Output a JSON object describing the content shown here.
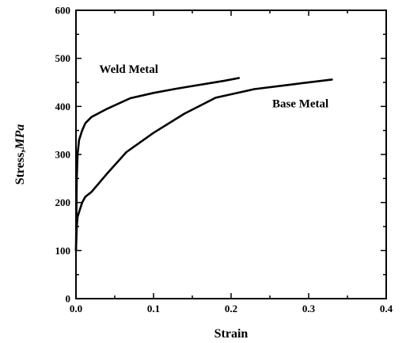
{
  "chart_data": {
    "type": "line",
    "title": "",
    "xlabel": "Strain",
    "ylabel_prefix": "Stress,",
    "ylabel_unit": "MPa",
    "xlim": [
      0,
      0.4
    ],
    "ylim": [
      0,
      600
    ],
    "x_ticks": [
      0.0,
      0.1,
      0.2,
      0.3,
      0.4
    ],
    "x_tick_labels": [
      "0.0",
      "0.1",
      "0.2",
      "0.3",
      "0.4"
    ],
    "y_ticks": [
      0,
      100,
      200,
      300,
      400,
      500,
      600
    ],
    "y_tick_labels": [
      "0",
      "100",
      "200",
      "300",
      "400",
      "500",
      "600"
    ],
    "grid": false,
    "series": [
      {
        "name": "Weld Metal",
        "x": [
          0.0,
          0.001,
          0.002,
          0.004,
          0.008,
          0.012,
          0.02,
          0.04,
          0.07,
          0.1,
          0.13,
          0.16,
          0.19,
          0.21
        ],
        "y": [
          100,
          250,
          300,
          330,
          350,
          365,
          378,
          395,
          417,
          428,
          437,
          445,
          453,
          459
        ]
      },
      {
        "name": "Base Metal",
        "x": [
          0.0,
          0.001,
          0.002,
          0.004,
          0.008,
          0.012,
          0.02,
          0.04,
          0.065,
          0.1,
          0.14,
          0.18,
          0.23,
          0.28,
          0.33
        ],
        "y": [
          100,
          150,
          170,
          180,
          200,
          212,
          222,
          260,
          305,
          345,
          385,
          418,
          436,
          446,
          456
        ]
      }
    ]
  }
}
